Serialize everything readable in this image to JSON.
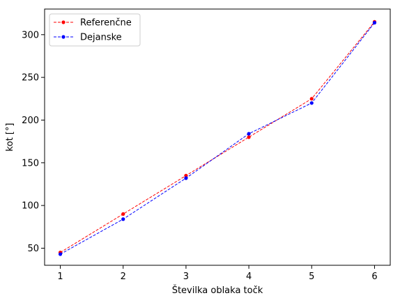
{
  "chart_data": {
    "type": "line",
    "title": "",
    "xlabel": "Številka oblaka točk",
    "ylabel": "kot [°]",
    "x": [
      1,
      2,
      3,
      4,
      5,
      6
    ],
    "xlim": [
      0.75,
      6.25
    ],
    "ylim": [
      30,
      330
    ],
    "xticks": [
      1,
      2,
      3,
      4,
      5,
      6
    ],
    "yticks": [
      50,
      100,
      150,
      200,
      250,
      300
    ],
    "grid": false,
    "legend_position": "upper-left",
    "series": [
      {
        "name": "Referenčne",
        "color": "#ff0000",
        "linestyle": "dashed",
        "marker": "circle",
        "values": [
          45,
          90,
          135,
          180,
          225,
          315
        ]
      },
      {
        "name": "Dejanske",
        "color": "#0000ff",
        "linestyle": "dashed",
        "marker": "circle",
        "values": [
          43,
          84,
          132,
          184,
          220,
          314
        ]
      }
    ]
  }
}
